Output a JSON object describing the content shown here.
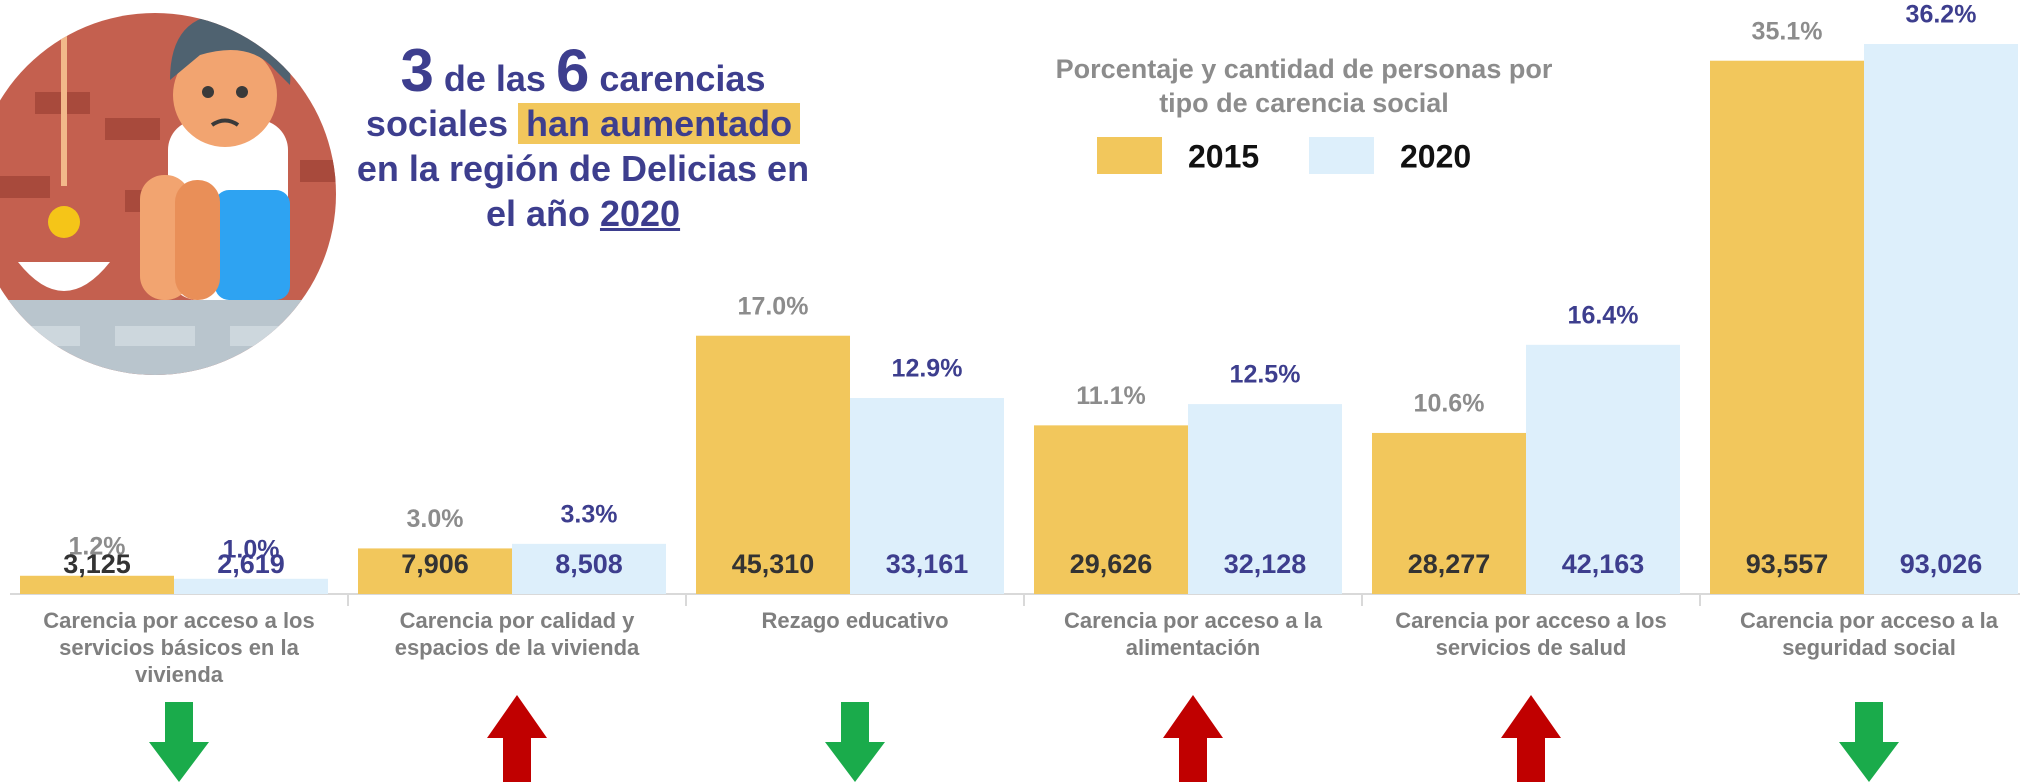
{
  "headline": [
    [
      "3",
      " de las ",
      "6",
      " carencias"
    ],
    [
      "sociales",
      "han aumentado"
    ],
    [
      "en la región de Delicias en"
    ],
    [
      "el año ",
      "2020"
    ]
  ],
  "chart_data": {
    "type": "bar",
    "title": "Porcentaje y cantidad de personas por tipo de carencia social",
    "categories": [
      "Carencia por acceso a los servicios básicos en la vivienda",
      "Carencia por calidad y espacios de la vivienda",
      "Rezago educativo",
      "Carencia por acceso a la alimentación",
      "Carencia por acceso a los servicios de salud",
      "Carencia por acceso a la seguridad social"
    ],
    "series": [
      {
        "name": "2015",
        "color": "#f2c75c",
        "values": [
          1.2,
          3.0,
          17.0,
          11.1,
          10.6,
          35.1
        ],
        "value_labels": [
          "1.2%",
          "3.0%",
          "17.0%",
          "11.1%",
          "10.6%",
          "35.1%"
        ],
        "counts": [
          3125,
          7906,
          45310,
          29626,
          28277,
          93557
        ],
        "count_labels": [
          "3,125",
          "7,906",
          "45,310",
          "29,626",
          "28,277",
          "93,557"
        ]
      },
      {
        "name": "2020",
        "color": "#ddeffb",
        "values": [
          1.0,
          3.3,
          12.9,
          12.5,
          16.4,
          36.2
        ],
        "value_labels": [
          "1.0%",
          "3.3%",
          "12.9%",
          "12.5%",
          "16.4%",
          "36.2%"
        ],
        "counts": [
          2619,
          8508,
          33161,
          32128,
          42163,
          93026
        ],
        "count_labels": [
          "2,619",
          "8,508",
          "33,161",
          "32,128",
          "42,163",
          "93,026"
        ]
      }
    ]
  }
}
